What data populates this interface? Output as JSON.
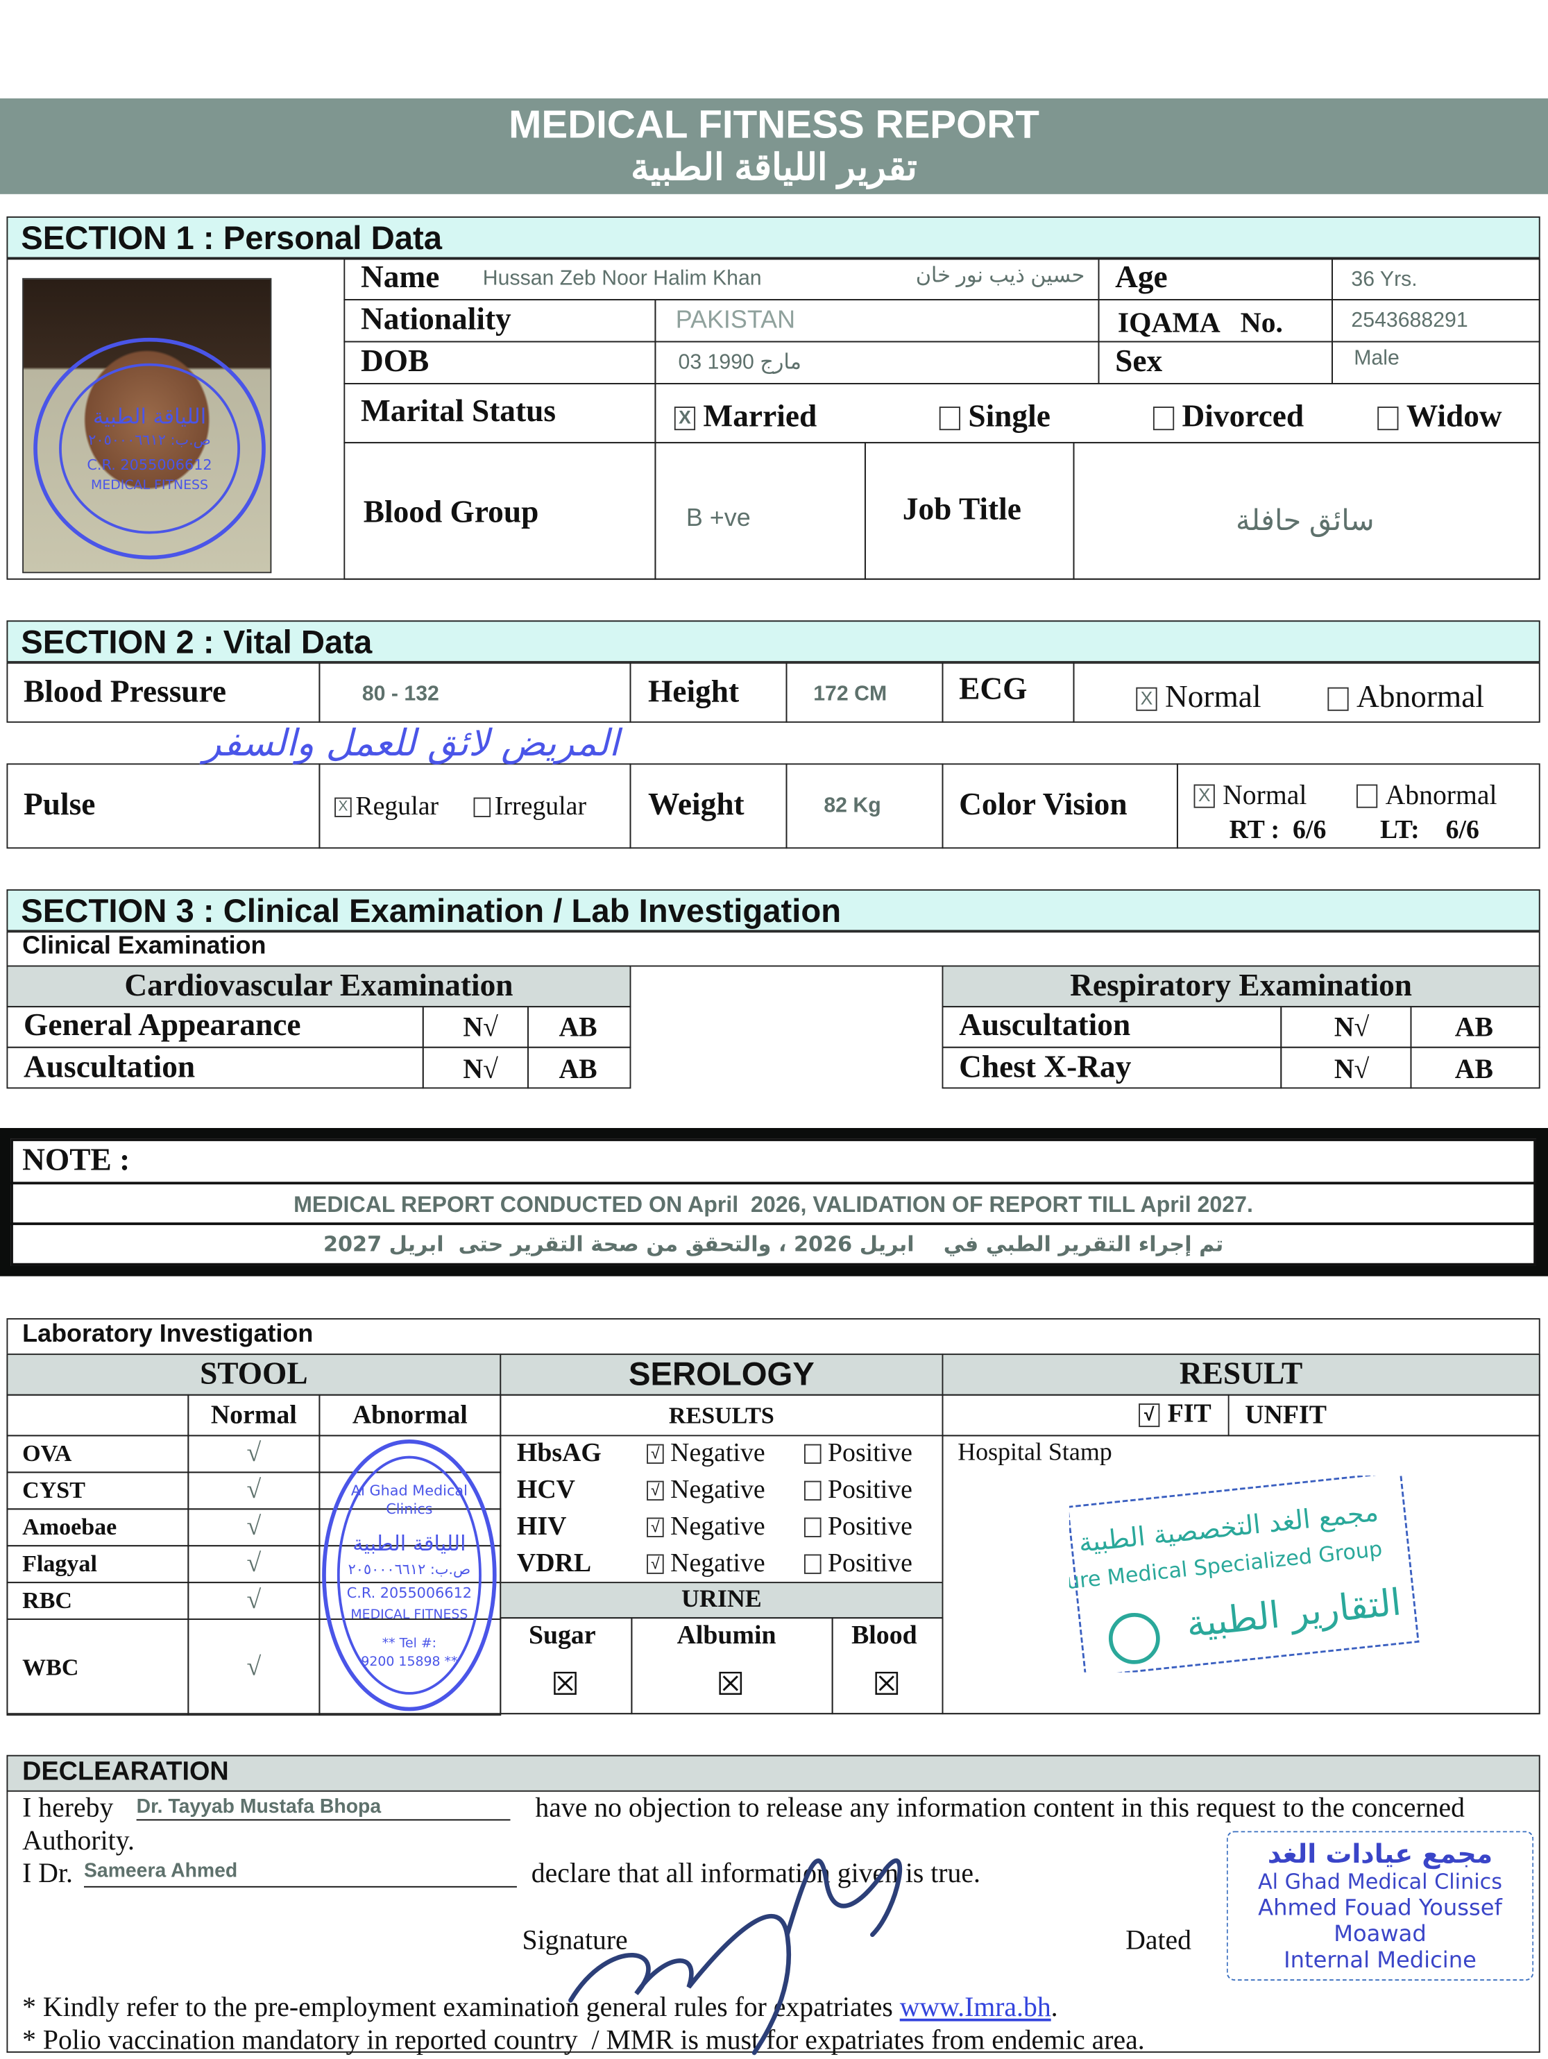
{
  "header": {
    "title": "MEDICAL FITNESS REPORT",
    "title_ar": "تقرير اللياقة الطبية"
  },
  "section1": {
    "title": "SECTION 1 : Personal Data",
    "name_label": "Name",
    "name": "Hussan Zeb Noor Halim Khan",
    "name_ar": "حسين ذيب نور خان",
    "age_label": "Age",
    "age": "36 Yrs.",
    "nationality_label": "Nationality",
    "nationality": "PAKISTAN",
    "iqama_label": "IQAMA   No.",
    "iqama": "2543688291",
    "dob_label": "DOB",
    "dob": "03 1990 مارج",
    "sex_label": "Sex",
    "sex": "Male",
    "marital_label": "Marital Status",
    "marital_options": [
      {
        "label": "Married",
        "mark": "X"
      },
      {
        "label": "Single",
        "mark": ""
      },
      {
        "label": "Divorced",
        "mark": ""
      },
      {
        "label": "Widow",
        "mark": ""
      }
    ],
    "blood_label": "Blood Group",
    "blood": "B +ve",
    "job_label": "Job Title",
    "job": "سائق حافلة"
  },
  "section2": {
    "title": "SECTION 2 : Vital Data",
    "bp_label": "Blood Pressure",
    "bp": "80 - 132",
    "height_label": "Height",
    "height": "172 CM",
    "ecg_label": "ECG",
    "ecg_options": [
      {
        "label": "Normal",
        "mark": "X"
      },
      {
        "label": "Abnormal",
        "mark": ""
      }
    ],
    "pulse_label": "Pulse",
    "pulse_options": [
      {
        "label": "Regular",
        "mark": "X"
      },
      {
        "label": "Irregular",
        "mark": ""
      }
    ],
    "weight_label": "Weight",
    "weight": "82 Kg",
    "cv_label": "Color Vision",
    "cv_options": [
      {
        "label": "Normal",
        "mark": "X"
      },
      {
        "label": "Abnormal",
        "mark": ""
      }
    ],
    "rt": "RT :  6/6",
    "lt": "LT:    6/6",
    "handwritten_note": "المريض لائق للعمل والسفر"
  },
  "section3": {
    "title": "SECTION 3 : Clinical Examination / Lab Investigation",
    "sub": "Clinical Examination",
    "cardio": {
      "title": "Cardiovascular Examination",
      "rows": [
        {
          "label": "General Appearance",
          "n": "N√",
          "ab": "AB"
        },
        {
          "label": "Auscultation",
          "n": "N√",
          "ab": "AB"
        }
      ]
    },
    "resp": {
      "title": "Respiratory Examination",
      "rows": [
        {
          "label": "Auscultation",
          "n": "N√",
          "ab": "AB"
        },
        {
          "label": "Chest X-Ray",
          "n": "N√",
          "ab": "AB"
        }
      ]
    }
  },
  "note": {
    "label": "NOTE :",
    "en": "MEDICAL REPORT CONDUCTED ON April  2026, VALIDATION OF REPORT TILL April 2027.",
    "ar": "تم إجراء التقرير الطبي في    ابريل 2026 ، والتحقق من صحة التقرير حتى  ابريل 2027"
  },
  "lab": {
    "title": "Laboratory Investigation",
    "stool": "STOOL",
    "serology": "SEROLOGY",
    "result": "RESULT",
    "normal": "Normal",
    "abnormal": "Abnormal",
    "results": "RESULTS",
    "fit": "FIT",
    "unfit": "UNFIT",
    "fit_mark": "√",
    "stool_rows": [
      {
        "label": "OVA",
        "normal": "√"
      },
      {
        "label": "CYST",
        "normal": "√"
      },
      {
        "label": "Amoebae",
        "normal": "√"
      },
      {
        "label": "Flagyal",
        "normal": "√"
      },
      {
        "label": "RBC",
        "normal": "√"
      },
      {
        "label": "WBC",
        "normal": "√"
      }
    ],
    "sero_rows": [
      {
        "label": "HbsAG",
        "neg": "Negative",
        "pos": "Positive",
        "mark": "√"
      },
      {
        "label": "HCV",
        "neg": "Negative",
        "pos": "Positive",
        "mark": "√"
      },
      {
        "label": "HIV",
        "neg": "Negative",
        "pos": "Positive",
        "mark": "√"
      },
      {
        "label": "VDRL",
        "neg": "Negative",
        "pos": "Positive",
        "mark": "√"
      }
    ],
    "urine": "URINE",
    "urine_cols": [
      {
        "label": "Sugar",
        "mark": "☒"
      },
      {
        "label": "Albumin",
        "mark": "☒"
      },
      {
        "label": "Blood",
        "mark": "☒"
      }
    ],
    "hospital_stamp": "Hospital Stamp"
  },
  "declaration": {
    "title": "DECLEARATION",
    "hereby": "I hereby",
    "doctor1": "Dr. Tayyab Mustafa Bhopa",
    "line1_rest": "have no objection to release any information content in this request to the concerned",
    "authority": "Authority.",
    "idr": "I Dr.",
    "doctor2": "Sameera Ahmed",
    "declare": "declare that all information given is true.",
    "signature": "Signature",
    "dated": "Dated",
    "foot1": "* Kindly refer to the pre-employment examination general rules for expatriates ",
    "link": "www.Imra.bh",
    "foot1_end": ".",
    "foot2": "* Polio vaccination mandatory in reported country  / MMR is must for expatriates from endemic area."
  },
  "stamps": {
    "round_en": "Al Ghad Medical Clinics",
    "round_ar": "اللياقة الطبية",
    "round_po": "ص.ب: ٢٠٥٠٠٠٦٦١٢",
    "round_cr": "C.R. 2055006612",
    "round_mf": "MEDICAL FITNESS",
    "round_tel": "** Tel #: 9200 15898 **",
    "hosp_ar": "مجمع الغد التخصصية الطبية",
    "hosp_en": "Future Medical Specialized Group",
    "hosp_ar2": "التقارير الطبية",
    "doc_ar": "مجمع عيادات الغد",
    "doc_en": "Al Ghad Medical Clinics",
    "doc_name": "Ahmed Fouad Youssef Moawad",
    "doc_spec": "Internal Medicine"
  },
  "colors": {
    "header_band": "#7f9690",
    "section_bg": "#d6f7f3",
    "gray_bg": "#d3dcda",
    "value_text": "#5e716c",
    "stamp_blue": "#4a55e8",
    "stamp_green": "#2aa89a"
  }
}
